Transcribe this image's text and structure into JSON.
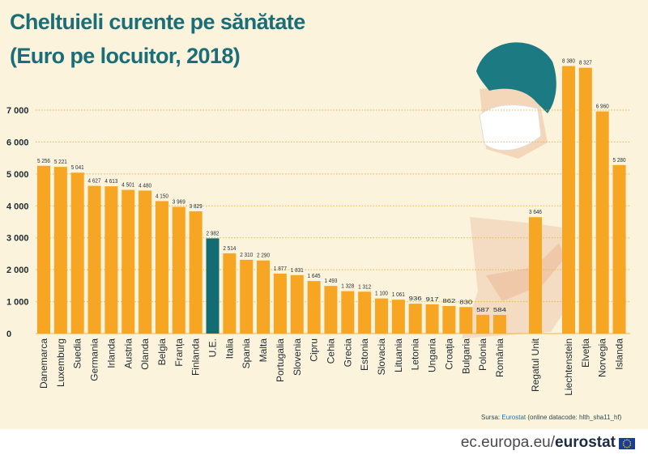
{
  "title_line1": "Cheltuieli curente pe sănătate",
  "title_line2": "(Euro pe locuitor, 2018)",
  "source": {
    "label": "Sursa:",
    "link": "Eurostat",
    "rest": "(online datacode: hlth_sha11_hf)"
  },
  "footer": {
    "site": "ec.europa.eu/",
    "brand": "eurostat"
  },
  "colors": {
    "bar": "#f6a623",
    "highlight": "#136b73",
    "title": "#1a6e78",
    "background": "#fcf3dc",
    "gridline": "#f2b34a"
  },
  "chart_data": {
    "type": "bar",
    "title": "Cheltuieli curente pe sănătate (Euro pe locuitor, 2018)",
    "ylim": [
      0,
      7000
    ],
    "yticks": [
      0,
      1000,
      2000,
      3000,
      4000,
      5000,
      6000,
      7000
    ],
    "ytick_labels": [
      "0",
      "1 000",
      "2 000",
      "3 000",
      "4 000",
      "5 000",
      "6 000",
      "7 000"
    ],
    "grid": true,
    "highlight_category": "U.E.",
    "groups": [
      {
        "categories": [
          "Danemarca",
          "Luxemburg",
          "Suedia",
          "Germania",
          "Irlanda",
          "Austria",
          "Olanda",
          "Belgia",
          "Franța",
          "Finlanda",
          "U.E.",
          "Italia",
          "Spania",
          "Malta",
          "Portugalia",
          "Slovenia",
          "Cipru",
          "Cehia",
          "Grecia",
          "Estonia",
          "Slovacia",
          "Lituania",
          "Letonia",
          "Ungaria",
          "Croația",
          "Bulgaria",
          "Polonia",
          "România"
        ],
        "values": [
          5256,
          5221,
          5041,
          4627,
          4613,
          4501,
          4480,
          4150,
          3969,
          3829,
          2982,
          2514,
          2310,
          2290,
          1877,
          1831,
          1645,
          1493,
          1328,
          1312,
          1100,
          1061,
          936,
          917,
          862,
          830,
          587,
          584
        ],
        "value_labels": [
          "5 256",
          "5 221",
          "5 041",
          "4 627",
          "4 613",
          "4 501",
          "4 480",
          "4 150",
          "3 969",
          "3 829",
          "2 982",
          "2 514",
          "2 310",
          "2 290",
          "1 877",
          "1 831",
          "1 645",
          "1 493",
          "1 328",
          "1 312",
          "1 100",
          "1 061",
          "936",
          "917",
          "862",
          "830",
          "587",
          "584"
        ]
      },
      {
        "categories": [
          "Regatul Unit"
        ],
        "values": [
          3646
        ],
        "value_labels": [
          "3 646"
        ]
      },
      {
        "categories": [
          "Liechtenstein",
          "Elveția",
          "Norvegia",
          "Islanda"
        ],
        "values": [
          8380,
          8327,
          6960,
          5280
        ],
        "value_labels": [
          "8 380",
          "8 327",
          "6 960",
          "5 280"
        ]
      }
    ]
  }
}
